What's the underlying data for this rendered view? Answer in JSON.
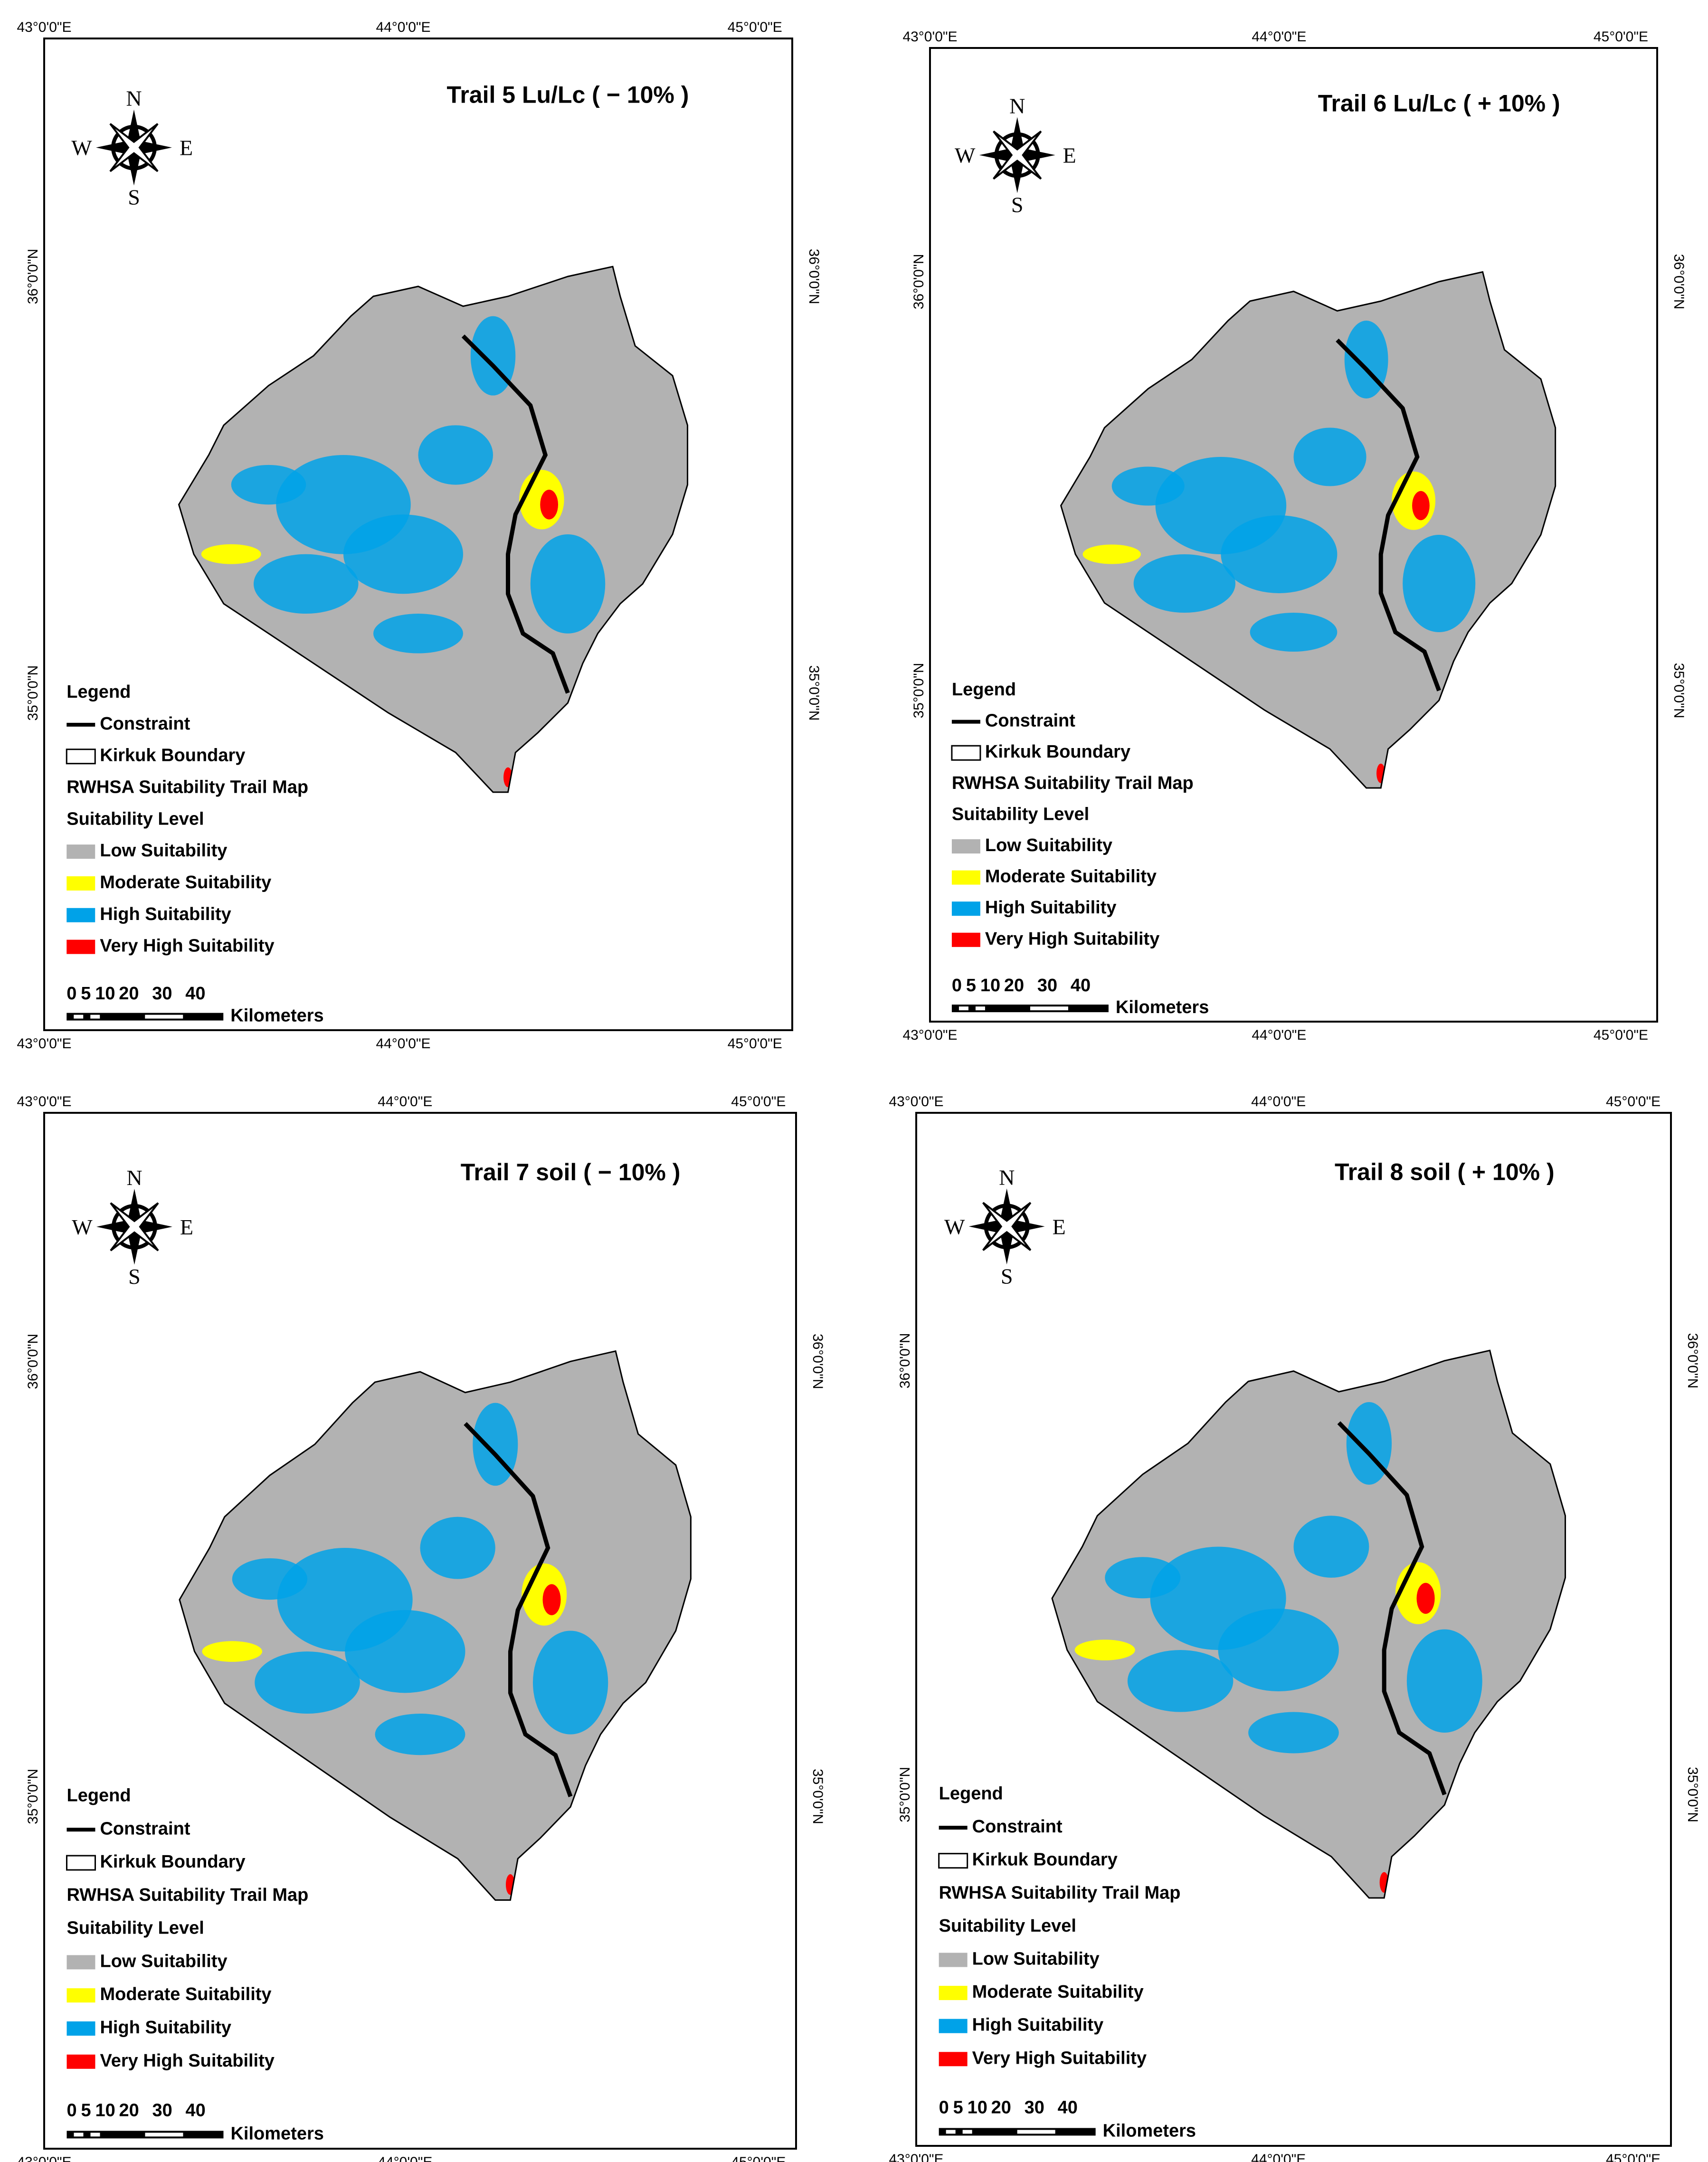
{
  "panels": [
    {
      "title": "Trail 5 Lu/Lc  ( − 10% )"
    },
    {
      "title": "Trail 6 Lu/Lc  ( + 10% )"
    },
    {
      "title": "Trail 7  soil  ( − 10% )"
    },
    {
      "title": "Trail 8  soil  ( + 10% )"
    }
  ],
  "lon_labels": [
    "43°0'0\"E",
    "44°0'0\"E",
    "45°0'0\"E"
  ],
  "lat_labels": [
    "36°0'0\"N",
    "35°0'0\"N"
  ],
  "compass": {
    "n": "N",
    "e": "E",
    "s": "S",
    "w": "W"
  },
  "legend": {
    "title": "Legend",
    "constraint": "Constraint",
    "boundary": "Kirkuk Boundary",
    "map_name": "RWHSA Suitability  Trail Map",
    "level_title": "Suitability Level",
    "classes": [
      {
        "label": "Low Suitability",
        "color": "#b2b2b2"
      },
      {
        "label": "Moderate Suitability",
        "color": "#ffff00"
      },
      {
        "label": "High Suitability",
        "color": "#00a2e8"
      },
      {
        "label": "Very High Suitability",
        "color": "#ff0000"
      }
    ]
  },
  "scale_bar": {
    "labels": [
      "0",
      "5",
      "10",
      "20",
      "30",
      "40"
    ],
    "unit": "Kilometers"
  }
}
